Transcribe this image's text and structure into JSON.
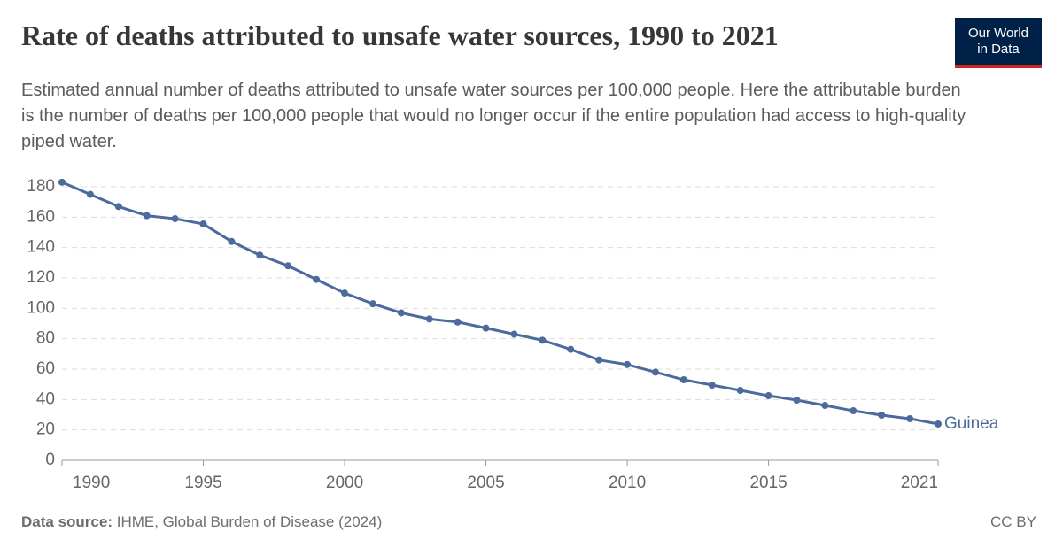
{
  "chart_data": {
    "type": "line",
    "title": "Rate of deaths attributed to unsafe water sources, 1990 to 2021",
    "subtitle": "Estimated annual number of deaths attributed to unsafe water sources per 100,000 people. Here the attributable burden is the number of deaths per 100,000 people that would no longer occur if the entire population had access to high-quality piped water.",
    "logo": [
      "Our World",
      "in Data"
    ],
    "source_label": "Data source:",
    "source": "IHME, Global Burden of Disease (2024)",
    "license": "CC BY",
    "x": [
      1990,
      1991,
      1992,
      1993,
      1994,
      1995,
      1996,
      1997,
      1998,
      1999,
      2000,
      2001,
      2002,
      2003,
      2004,
      2005,
      2006,
      2007,
      2008,
      2009,
      2010,
      2011,
      2012,
      2013,
      2014,
      2015,
      2016,
      2017,
      2018,
      2019,
      2020,
      2021
    ],
    "series": [
      {
        "name": "Guinea",
        "color": "#4c6a9c",
        "values": [
          183,
          175,
          167,
          161,
          159,
          155.5,
          144,
          135,
          128,
          119,
          110,
          103,
          97,
          93,
          91,
          87,
          83,
          79,
          73,
          66,
          63,
          58,
          53,
          49.5,
          46,
          42.5,
          39.6,
          36.1,
          32.6,
          29.7,
          27.4,
          23.9
        ]
      }
    ],
    "xlim": [
      1990,
      2021
    ],
    "xticks": [
      1990,
      1995,
      2000,
      2005,
      2010,
      2015,
      2021
    ],
    "ylim": [
      0,
      180
    ],
    "yticks": [
      0,
      20,
      40,
      60,
      80,
      100,
      120,
      140,
      160,
      180
    ],
    "grid": true
  }
}
